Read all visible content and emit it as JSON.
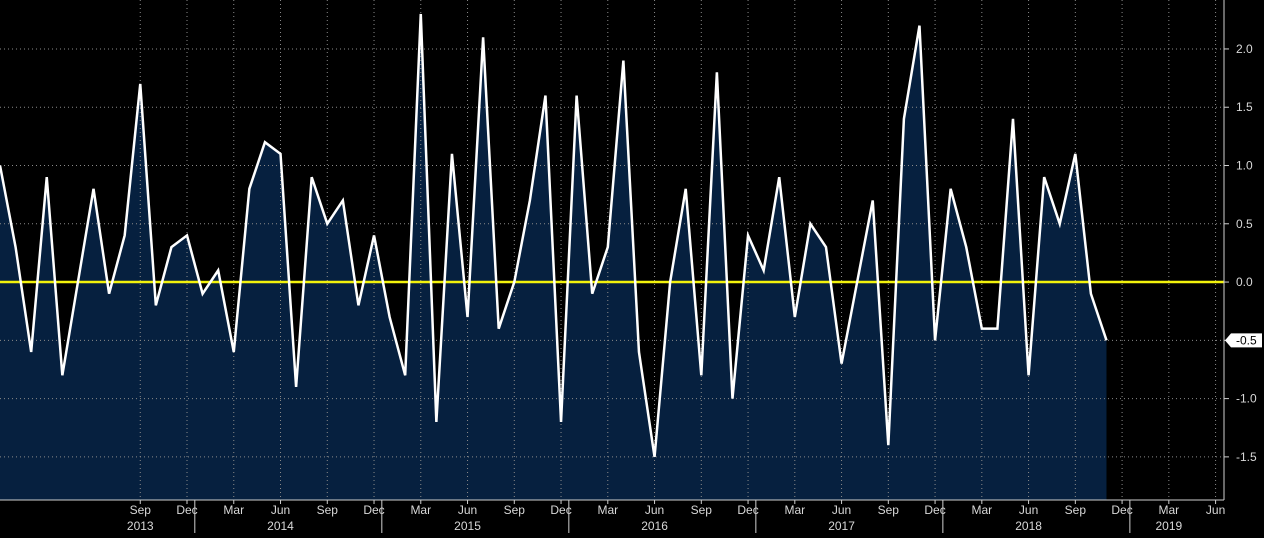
{
  "chart_data": {
    "type": "area",
    "title": "",
    "xlabel": "",
    "ylabel": "",
    "ylim": [
      -1.87,
      2.42
    ],
    "grid": true,
    "legend": "none",
    "x_start": "2012-12",
    "x_end": "2019-05",
    "series": [
      {
        "values": [
          1.0,
          0.3,
          -0.6,
          0.9,
          -0.8,
          0.0,
          0.8,
          -0.1,
          0.4,
          1.7,
          -0.2,
          0.3,
          0.4,
          -0.1,
          0.1,
          -0.6,
          0.8,
          1.2,
          1.1,
          -0.9,
          0.9,
          0.5,
          0.7,
          -0.2,
          0.4,
          -0.3,
          -0.8,
          2.3,
          -1.2,
          1.1,
          -0.3,
          2.1,
          -0.4,
          0.0,
          0.7,
          1.6,
          -1.2,
          1.6,
          -0.1,
          0.3,
          1.9,
          -0.6,
          -1.5,
          0.0,
          0.8,
          -0.8,
          1.8,
          -1.0,
          0.4,
          0.1,
          0.9,
          -0.3,
          0.5,
          0.3,
          -0.7,
          0.0,
          0.7,
          -1.4,
          1.4,
          2.2,
          -0.5,
          0.8,
          0.3,
          -0.4,
          -0.4,
          1.4,
          -0.8,
          0.9,
          0.5,
          1.1,
          -0.1,
          -0.5
        ]
      }
    ],
    "zero_line": 0.0,
    "last_value_label": "-0.5",
    "y_ticks": [
      {
        "value": 2.0,
        "label": "2.0"
      },
      {
        "value": 1.5,
        "label": "1.5"
      },
      {
        "value": 1.0,
        "label": "1.0"
      },
      {
        "value": 0.5,
        "label": "0.5"
      },
      {
        "value": 0.0,
        "label": "0.0"
      },
      {
        "value": -0.5,
        "label": "-0.5"
      },
      {
        "value": -1.0,
        "label": "-1.0"
      },
      {
        "value": -1.5,
        "label": "-1.5"
      }
    ],
    "month_ticks": [
      {
        "x": "2013-09",
        "label": "Sep"
      },
      {
        "x": "2013-12",
        "label": "Dec"
      },
      {
        "x": "2014-03",
        "label": "Mar"
      },
      {
        "x": "2014-06",
        "label": "Jun"
      },
      {
        "x": "2014-09",
        "label": "Sep"
      },
      {
        "x": "2014-12",
        "label": "Dec"
      },
      {
        "x": "2015-03",
        "label": "Mar"
      },
      {
        "x": "2015-06",
        "label": "Jun"
      },
      {
        "x": "2015-09",
        "label": "Sep"
      },
      {
        "x": "2015-12",
        "label": "Dec"
      },
      {
        "x": "2016-03",
        "label": "Mar"
      },
      {
        "x": "2016-06",
        "label": "Jun"
      },
      {
        "x": "2016-09",
        "label": "Sep"
      },
      {
        "x": "2016-12",
        "label": "Dec"
      },
      {
        "x": "2017-03",
        "label": "Mar"
      },
      {
        "x": "2017-06",
        "label": "Jun"
      },
      {
        "x": "2017-09",
        "label": "Sep"
      },
      {
        "x": "2017-12",
        "label": "Dec"
      },
      {
        "x": "2018-03",
        "label": "Mar"
      },
      {
        "x": "2018-06",
        "label": "Jun"
      },
      {
        "x": "2018-09",
        "label": "Sep"
      },
      {
        "x": "2018-12",
        "label": "Dec"
      },
      {
        "x": "2019-03",
        "label": "Mar"
      },
      {
        "x": "2019-06",
        "label": "Jun"
      }
    ],
    "year_ticks": [
      {
        "x": "2013-09",
        "label": "2013"
      },
      {
        "x": "2014-06",
        "label": "2014"
      },
      {
        "x": "2015-06",
        "label": "2015"
      },
      {
        "x": "2016-06",
        "label": "2016"
      },
      {
        "x": "2017-06",
        "label": "2017"
      },
      {
        "x": "2018-06",
        "label": "2018"
      },
      {
        "x": "2019-03",
        "label": "2019"
      }
    ],
    "year_separators": [
      "2014-01",
      "2015-01",
      "2016-01",
      "2017-01",
      "2018-01",
      "2019-01"
    ],
    "colors": {
      "background": "#000000",
      "plot_background": "#000000",
      "area_fill": "#06203f",
      "line": "#ffffff",
      "zero_line": "#f2f20c",
      "grid": "#8a8a8a",
      "axis": "#cfcfcf",
      "text": "#d8d8d8",
      "label_box": "#ffffff",
      "label_text": "#000000"
    }
  }
}
